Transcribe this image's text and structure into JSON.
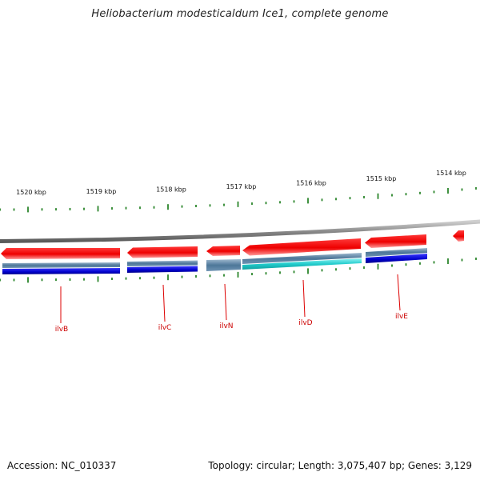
{
  "title": "Heliobacterium modesticaldum Ice1, complete genome",
  "footer": {
    "accession": "Accession: NC_010337",
    "summary": "Topology: circular; Length: 3,075,407 bp; Genes: 3,129"
  },
  "scale": {
    "unit": "kbp",
    "labels": [
      "1520 kbp",
      "1519 kbp",
      "1518 kbp",
      "1517 kbp",
      "1516 kbp",
      "1515 kbp",
      "1514 kbp"
    ]
  },
  "genes": [
    {
      "name": "ilvB"
    },
    {
      "name": "ilvC"
    },
    {
      "name": "ilvN"
    },
    {
      "name": "ilvD"
    },
    {
      "name": "ilvE"
    }
  ],
  "colors": {
    "cds_forward": "#ee1111",
    "cds_reverse_dark": "#0000cc",
    "cds_reverse_light": "#5588aa",
    "cds_cyan": "#22cccc",
    "backbone": "#888888",
    "ticks": "#117711",
    "gene_label": "#cc0000"
  }
}
